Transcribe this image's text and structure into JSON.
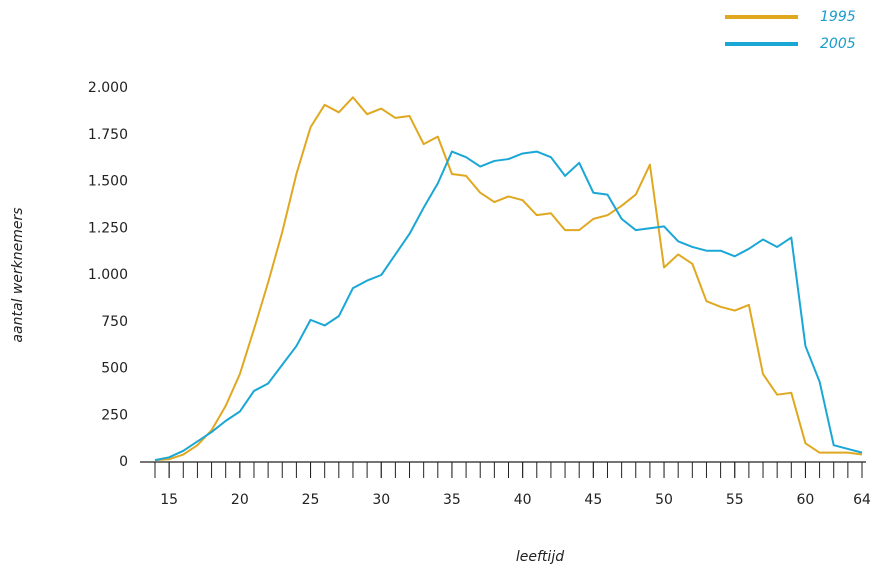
{
  "chart_data": {
    "type": "line",
    "x_label": "leeftijd",
    "y_label": "aantal werknemers",
    "x": [
      14,
      15,
      16,
      17,
      18,
      19,
      20,
      21,
      22,
      23,
      24,
      25,
      26,
      27,
      28,
      29,
      30,
      31,
      32,
      33,
      34,
      35,
      36,
      37,
      38,
      39,
      40,
      41,
      42,
      43,
      44,
      45,
      46,
      47,
      48,
      49,
      50,
      51,
      52,
      53,
      54,
      55,
      56,
      57,
      58,
      59,
      60,
      61,
      62,
      63,
      64
    ],
    "series": [
      {
        "name": "1995",
        "color": "#e0a820",
        "values": [
          10,
          15,
          40,
          90,
          170,
          300,
          470,
          710,
          960,
          1230,
          1540,
          1790,
          1910,
          1870,
          1950,
          1860,
          1890,
          1840,
          1850,
          1700,
          1740,
          1540,
          1530,
          1440,
          1390,
          1420,
          1400,
          1320,
          1330,
          1240,
          1240,
          1300,
          1320,
          1370,
          1430,
          1590,
          1040,
          1110,
          1060,
          860,
          830,
          810,
          840,
          470,
          360,
          370,
          100,
          50,
          50,
          50,
          40
        ]
      },
      {
        "name": "2005",
        "color": "#1aa7d6",
        "values": [
          10,
          25,
          60,
          110,
          160,
          220,
          270,
          380,
          420,
          520,
          620,
          760,
          730,
          780,
          930,
          970,
          1000,
          1110,
          1220,
          1360,
          1490,
          1660,
          1630,
          1580,
          1610,
          1620,
          1650,
          1660,
          1630,
          1530,
          1600,
          1440,
          1430,
          1300,
          1240,
          1250,
          1260,
          1180,
          1150,
          1130,
          1130,
          1100,
          1140,
          1190,
          1150,
          1200,
          620,
          430,
          90,
          70,
          50
        ]
      }
    ],
    "xlim": [
      14,
      64
    ],
    "xticks": [
      15,
      20,
      25,
      30,
      35,
      40,
      45,
      50,
      55,
      60,
      64
    ],
    "ylim": [
      0,
      2000
    ],
    "yticks": [
      0,
      250,
      500,
      750,
      {
        "value": 1000,
        "label": "1.000"
      },
      {
        "value": 1250,
        "label": "1.250"
      },
      {
        "value": 1500,
        "label": "1.500"
      },
      {
        "value": 1750,
        "label": "1.750"
      },
      {
        "value": 2000,
        "label": "2.000"
      }
    ],
    "legend": "top-right"
  }
}
